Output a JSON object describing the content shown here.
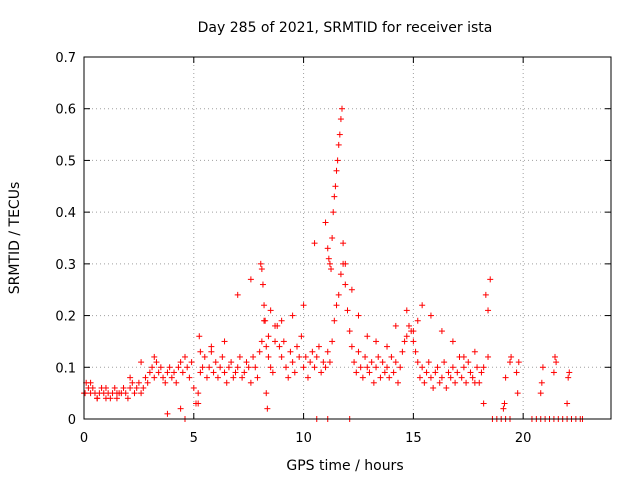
{
  "chart_data": {
    "type": "scatter",
    "title": "Day 285 of 2021, SRMTID for receiver ista",
    "xlabel": "GPS time / hours",
    "ylabel": "SRMTID / TECUs",
    "xlim": [
      0,
      24
    ],
    "ylim": [
      0,
      0.7
    ],
    "xticks": [
      0,
      5,
      10,
      15,
      20
    ],
    "yticks": [
      0,
      0.1,
      0.2,
      0.3,
      0.4,
      0.5,
      0.6,
      0.7
    ],
    "xtick_labels": [
      "0",
      "5",
      "10",
      "15",
      "20"
    ],
    "ytick_labels": [
      "0",
      "0.1",
      "0.2",
      "0.3",
      "0.4",
      "0.5",
      "0.6",
      "0.7"
    ],
    "grid": true,
    "marker": "+",
    "color": "#ff0000",
    "series": [
      {
        "name": "SRMTID",
        "x": [
          0.0,
          0.1,
          0.2,
          0.3,
          0.4,
          0.5,
          0.6,
          0.7,
          0.8,
          0.9,
          1.0,
          1.1,
          1.2,
          1.3,
          1.4,
          1.5,
          1.6,
          1.7,
          1.8,
          1.9,
          2.0,
          2.1,
          2.2,
          2.3,
          2.4,
          2.5,
          2.6,
          2.7,
          2.8,
          2.9,
          3.0,
          3.1,
          3.2,
          3.3,
          3.4,
          3.5,
          3.6,
          3.7,
          3.8,
          3.9,
          4.0,
          4.1,
          4.2,
          4.3,
          4.4,
          4.5,
          4.6,
          4.7,
          4.8,
          4.9,
          5.0,
          5.1,
          5.2,
          5.3,
          5.4,
          5.5,
          5.6,
          5.7,
          5.8,
          5.9,
          6.0,
          6.1,
          6.2,
          6.3,
          6.4,
          6.5,
          6.6,
          6.7,
          6.8,
          6.9,
          7.0,
          7.1,
          7.2,
          7.3,
          7.4,
          7.5,
          7.6,
          7.7,
          7.8,
          7.9,
          8.0,
          8.1,
          8.2,
          8.3,
          8.4,
          8.5,
          8.6,
          8.7,
          8.8,
          8.9,
          9.0,
          9.1,
          9.2,
          9.3,
          9.4,
          9.5,
          9.6,
          9.7,
          9.8,
          9.9,
          10.0,
          10.1,
          10.2,
          10.3,
          10.4,
          10.5,
          10.6,
          10.7,
          10.8,
          10.9,
          11.0,
          11.1,
          11.2,
          11.3,
          11.4,
          11.5,
          11.6,
          11.7,
          11.8,
          11.9,
          12.0,
          12.1,
          12.2,
          12.3,
          12.4,
          12.5,
          12.6,
          12.7,
          12.8,
          12.9,
          13.0,
          13.1,
          13.2,
          13.3,
          13.4,
          13.5,
          13.6,
          13.7,
          13.8,
          13.9,
          14.0,
          14.1,
          14.2,
          14.3,
          14.4,
          14.5,
          14.6,
          14.7,
          14.8,
          14.9,
          15.0,
          15.1,
          15.2,
          15.3,
          15.4,
          15.5,
          15.6,
          15.7,
          15.8,
          15.9,
          16.0,
          16.1,
          16.2,
          16.3,
          16.4,
          16.5,
          16.6,
          16.7,
          16.8,
          16.9,
          17.0,
          17.1,
          17.2,
          17.3,
          17.4,
          17.5,
          17.6,
          17.7,
          17.8,
          17.9,
          18.0,
          18.1,
          18.2,
          18.3,
          18.4,
          18.5,
          19.1,
          19.15,
          19.2,
          19.4,
          19.45,
          19.7,
          19.75,
          19.8,
          20.8,
          20.85,
          20.9,
          21.4,
          21.45,
          21.5,
          22.0,
          22.05,
          22.1,
          0.05,
          0.3,
          0.6,
          1.0,
          1.5,
          2.1,
          2.6,
          3.2,
          3.8,
          4.4,
          5.2,
          5.25,
          5.3,
          5.8,
          6.4,
          7.0,
          7.6,
          8.05,
          8.1,
          8.15,
          8.2,
          8.25,
          8.3,
          8.35,
          8.4,
          8.5,
          8.7,
          9.0,
          9.5,
          10.0,
          10.5,
          11.0,
          11.1,
          11.15,
          11.2,
          11.25,
          11.3,
          11.35,
          11.4,
          11.45,
          11.5,
          11.55,
          11.6,
          11.65,
          11.7,
          11.75,
          11.8,
          11.9,
          12.2,
          12.5,
          12.9,
          13.3,
          13.8,
          14.2,
          14.7,
          15.0,
          15.2,
          15.4,
          15.8,
          16.3,
          16.8,
          17.3,
          17.8,
          18.2,
          18.4,
          4.6,
          10.6,
          11.1,
          12.1,
          18.6,
          18.8,
          19.0,
          19.2,
          19.4,
          20.4,
          20.6,
          20.8,
          21.0,
          21.2,
          21.4,
          21.6,
          21.8,
          22.0,
          22.2,
          22.4,
          22.6,
          22.7
        ],
        "y": [
          0.05,
          0.07,
          0.06,
          0.05,
          0.06,
          0.05,
          0.04,
          0.05,
          0.06,
          0.05,
          0.04,
          0.05,
          0.04,
          0.05,
          0.06,
          0.04,
          0.05,
          0.05,
          0.06,
          0.05,
          0.04,
          0.06,
          0.07,
          0.05,
          0.06,
          0.07,
          0.05,
          0.06,
          0.08,
          0.07,
          0.09,
          0.1,
          0.08,
          0.11,
          0.09,
          0.1,
          0.08,
          0.07,
          0.09,
          0.1,
          0.08,
          0.09,
          0.07,
          0.1,
          0.11,
          0.09,
          0.12,
          0.1,
          0.08,
          0.11,
          0.06,
          0.03,
          0.05,
          0.09,
          0.1,
          0.12,
          0.08,
          0.1,
          0.13,
          0.09,
          0.11,
          0.08,
          0.1,
          0.12,
          0.09,
          0.07,
          0.1,
          0.11,
          0.08,
          0.09,
          0.1,
          0.12,
          0.08,
          0.09,
          0.11,
          0.1,
          0.07,
          0.12,
          0.1,
          0.08,
          0.13,
          0.15,
          0.19,
          0.14,
          0.12,
          0.1,
          0.09,
          0.15,
          0.18,
          0.14,
          0.12,
          0.15,
          0.1,
          0.08,
          0.13,
          0.11,
          0.09,
          0.14,
          0.12,
          0.16,
          0.1,
          0.12,
          0.08,
          0.11,
          0.13,
          0.1,
          0.12,
          0.14,
          0.09,
          0.11,
          0.1,
          0.13,
          0.11,
          0.15,
          0.19,
          0.22,
          0.24,
          0.28,
          0.3,
          0.26,
          0.21,
          0.17,
          0.14,
          0.11,
          0.09,
          0.13,
          0.1,
          0.08,
          0.12,
          0.1,
          0.09,
          0.11,
          0.07,
          0.1,
          0.12,
          0.08,
          0.11,
          0.09,
          0.1,
          0.08,
          0.12,
          0.09,
          0.11,
          0.07,
          0.1,
          0.13,
          0.15,
          0.16,
          0.18,
          0.17,
          0.15,
          0.13,
          0.11,
          0.08,
          0.1,
          0.07,
          0.09,
          0.11,
          0.08,
          0.06,
          0.09,
          0.1,
          0.07,
          0.08,
          0.11,
          0.06,
          0.09,
          0.08,
          0.1,
          0.07,
          0.09,
          0.12,
          0.08,
          0.1,
          0.07,
          0.11,
          0.09,
          0.08,
          0.07,
          0.1,
          0.07,
          0.09,
          0.03,
          0.24,
          0.21,
          0.27,
          0.02,
          0.03,
          0.08,
          0.11,
          0.12,
          0.09,
          0.05,
          0.11,
          0.05,
          0.07,
          0.1,
          0.09,
          0.12,
          0.11,
          0.03,
          0.08,
          0.09,
          0.05,
          0.07,
          0.04,
          0.06,
          0.05,
          0.08,
          0.11,
          0.12,
          0.01,
          0.02,
          0.03,
          0.16,
          0.13,
          0.14,
          0.15,
          0.24,
          0.27,
          0.3,
          0.29,
          0.26,
          0.22,
          0.19,
          0.05,
          0.02,
          0.16,
          0.21,
          0.18,
          0.19,
          0.2,
          0.22,
          0.34,
          0.38,
          0.33,
          0.31,
          0.3,
          0.29,
          0.35,
          0.4,
          0.43,
          0.45,
          0.48,
          0.5,
          0.53,
          0.55,
          0.58,
          0.6,
          0.34,
          0.3,
          0.25,
          0.2,
          0.16,
          0.15,
          0.14,
          0.18,
          0.21,
          0.17,
          0.19,
          0.22,
          0.2,
          0.17,
          0.15,
          0.12,
          0.13,
          0.1,
          0.12,
          0.0,
          0.0,
          0.0,
          0.0,
          0.0,
          0.0,
          0.0,
          0.0,
          0.0,
          0.0,
          0.0,
          0.0,
          0.0,
          0.0,
          0.0,
          0.0,
          0.0,
          0.0,
          0.0,
          0.0,
          0.0,
          0.0
        ]
      }
    ]
  }
}
